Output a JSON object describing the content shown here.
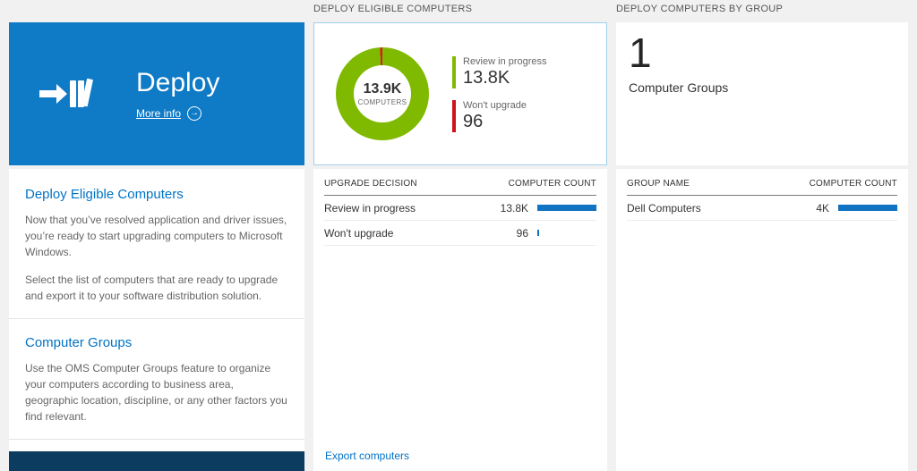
{
  "colors": {
    "tile_blue": "#0f7ac6",
    "link_blue": "#0072c6",
    "donut_green": "#7fba00",
    "donut_red": "#dd1b23",
    "bar_blue": "#1173c2",
    "footer_navy": "#0d3c61"
  },
  "left_column": {
    "tile": {
      "title": "Deploy",
      "more_info_label": "More info"
    },
    "sections": [
      {
        "heading": "Deploy Eligible Computers",
        "paragraphs": [
          "Now that you’ve resolved application and driver issues, you’re ready to start upgrading computers to Microsoft Windows.",
          "Select the list of computers that are ready to upgrade and export it to your software distribution solution."
        ]
      },
      {
        "heading": "Computer Groups",
        "paragraphs": [
          "Use the OMS Computer Groups feature to organize your computers according to business area, geographic location, discipline, or any other factors you find relevant."
        ]
      }
    ]
  },
  "middle_column": {
    "header": "DEPLOY ELIGIBLE COMPUTERS",
    "donut": {
      "center_value": "13.9K",
      "center_label": "COMPUTERS"
    },
    "legend": [
      {
        "label": "Review in progress",
        "value": "13.8K",
        "color": "#7fba00"
      },
      {
        "label": "Won't upgrade",
        "value": "96",
        "color": "#dd1b23"
      }
    ],
    "table": {
      "col1": "UPGRADE DECISION",
      "col2": "COMPUTER COUNT",
      "rows": [
        {
          "label": "Review in progress",
          "value": "13.8K",
          "bar_pct": 100
        },
        {
          "label": "Won't upgrade",
          "value": "96",
          "bar_pct": 3
        }
      ]
    },
    "export_link": "Export computers"
  },
  "right_column": {
    "header": "DEPLOY COMPUTERS BY GROUP",
    "count": "1",
    "count_label": "Computer Groups",
    "table": {
      "col1": "GROUP NAME",
      "col2": "COMPUTER COUNT",
      "rows": [
        {
          "label": "Dell Computers",
          "value": "4K",
          "bar_pct": 100
        }
      ]
    }
  },
  "chart_data": [
    {
      "type": "pie",
      "title": "Deploy Eligible Computers",
      "labels": [
        "Review in progress",
        "Won't upgrade"
      ],
      "values": [
        13800,
        96
      ],
      "colors": [
        "#7fba00",
        "#dd1b23"
      ],
      "center_text": "13.9K COMPUTERS",
      "legend_position": "right"
    },
    {
      "type": "bar",
      "title": "Upgrade Decision vs Computer Count",
      "categories": [
        "Review in progress",
        "Won't upgrade"
      ],
      "values": [
        13800,
        96
      ],
      "xlabel": "UPGRADE DECISION",
      "ylabel": "COMPUTER COUNT"
    },
    {
      "type": "bar",
      "title": "Deploy Computers by Group",
      "categories": [
        "Dell Computers"
      ],
      "values": [
        4000
      ],
      "xlabel": "GROUP NAME",
      "ylabel": "COMPUTER COUNT"
    }
  ]
}
